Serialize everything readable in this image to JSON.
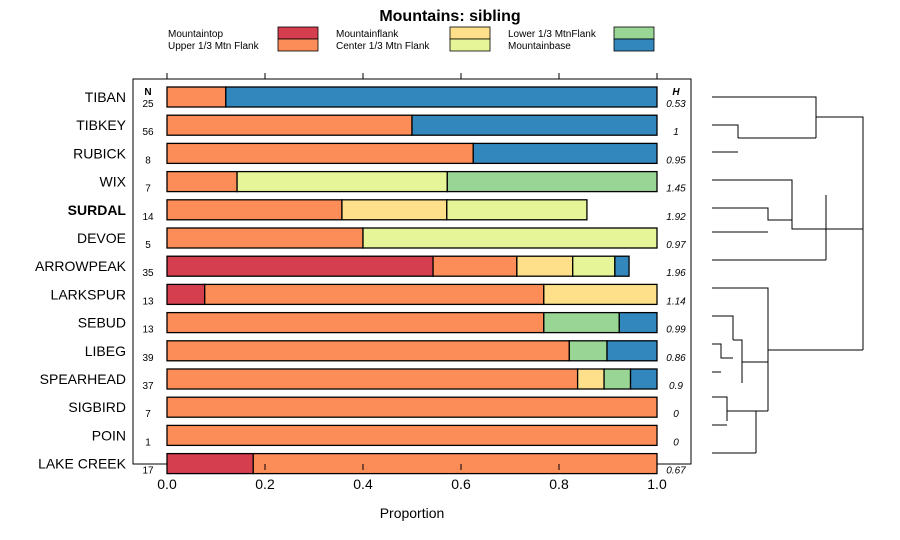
{
  "chart_data": {
    "type": "bar",
    "stacked": true,
    "orientation": "horizontal",
    "title": "Mountains: sibling",
    "xlabel": "Proportion",
    "xlim": [
      0,
      1
    ],
    "xticks": [
      "0.0",
      "0.2",
      "0.4",
      "0.6",
      "0.8",
      "1.0"
    ],
    "xtick_values": [
      0,
      0.2,
      0.4,
      0.6,
      0.8,
      1.0
    ],
    "n_header": "N",
    "h_header": "H",
    "legend": [
      {
        "name": "Mountaintop",
        "color": "#d53e4f"
      },
      {
        "name": "Upper 1/3 Mtn Flank",
        "color": "#fc8d59"
      },
      {
        "name": "Mountainflank",
        "color": "#fee08b"
      },
      {
        "name": "Center 1/3 Mtn Flank",
        "color": "#e6f598"
      },
      {
        "name": "Lower 1/3 MtnFlank",
        "color": "#99d594"
      },
      {
        "name": "Mountainbase",
        "color": "#3288bd"
      }
    ],
    "categories": [
      "TIBAN",
      "TIBKEY",
      "RUBICK",
      "WIX",
      "SURDAL",
      "DEVOE",
      "ARROWPEAK",
      "LARKSPUR",
      "SEBUD",
      "LIBEG",
      "SPEARHEAD",
      "SIGBIRD",
      "POIN",
      "LAKE CREEK"
    ],
    "highlighted": "SURDAL",
    "n": [
      "25",
      "56",
      "8",
      "7",
      "14",
      "5",
      "35",
      "13",
      "13",
      "39",
      "37",
      "7",
      "1",
      "17"
    ],
    "h": [
      "0.53",
      "1",
      "0.95",
      "1.45",
      "1.92",
      "0.97",
      "1.96",
      "1.14",
      "0.99",
      "0.86",
      "0.9",
      "0",
      "0",
      "0.67"
    ],
    "series": [
      {
        "name": "Mountaintop",
        "values": [
          0,
          0,
          0,
          0,
          0,
          0,
          0.543,
          0.077,
          0,
          0,
          0,
          0,
          0,
          0.176
        ]
      },
      {
        "name": "Upper 1/3 Mtn Flank",
        "values": [
          0.12,
          0.5,
          0.625,
          0.143,
          0.357,
          0.4,
          0.171,
          0.692,
          0.769,
          0.821,
          0.838,
          1.0,
          1.0,
          0.824
        ]
      },
      {
        "name": "Mountainflank",
        "values": [
          0,
          0,
          0,
          0,
          0.214,
          0,
          0.114,
          0.231,
          0,
          0,
          0.054,
          0,
          0,
          0
        ]
      },
      {
        "name": "Center 1/3 Mtn Flank",
        "values": [
          0,
          0,
          0,
          0.429,
          0.286,
          0.6,
          0.086,
          0,
          0,
          0,
          0,
          0,
          0,
          0
        ]
      },
      {
        "name": "Lower 1/3 MtnFlank",
        "values": [
          0,
          0,
          0,
          0.428,
          0,
          0,
          0,
          0,
          0.154,
          0.077,
          0.054,
          0,
          0,
          0
        ]
      },
      {
        "name": "Mountainbase",
        "values": [
          0.88,
          0.5,
          0.375,
          0,
          0,
          0,
          0.029,
          0,
          0.077,
          0.102,
          0.054,
          0,
          0,
          0
        ]
      }
    ]
  }
}
